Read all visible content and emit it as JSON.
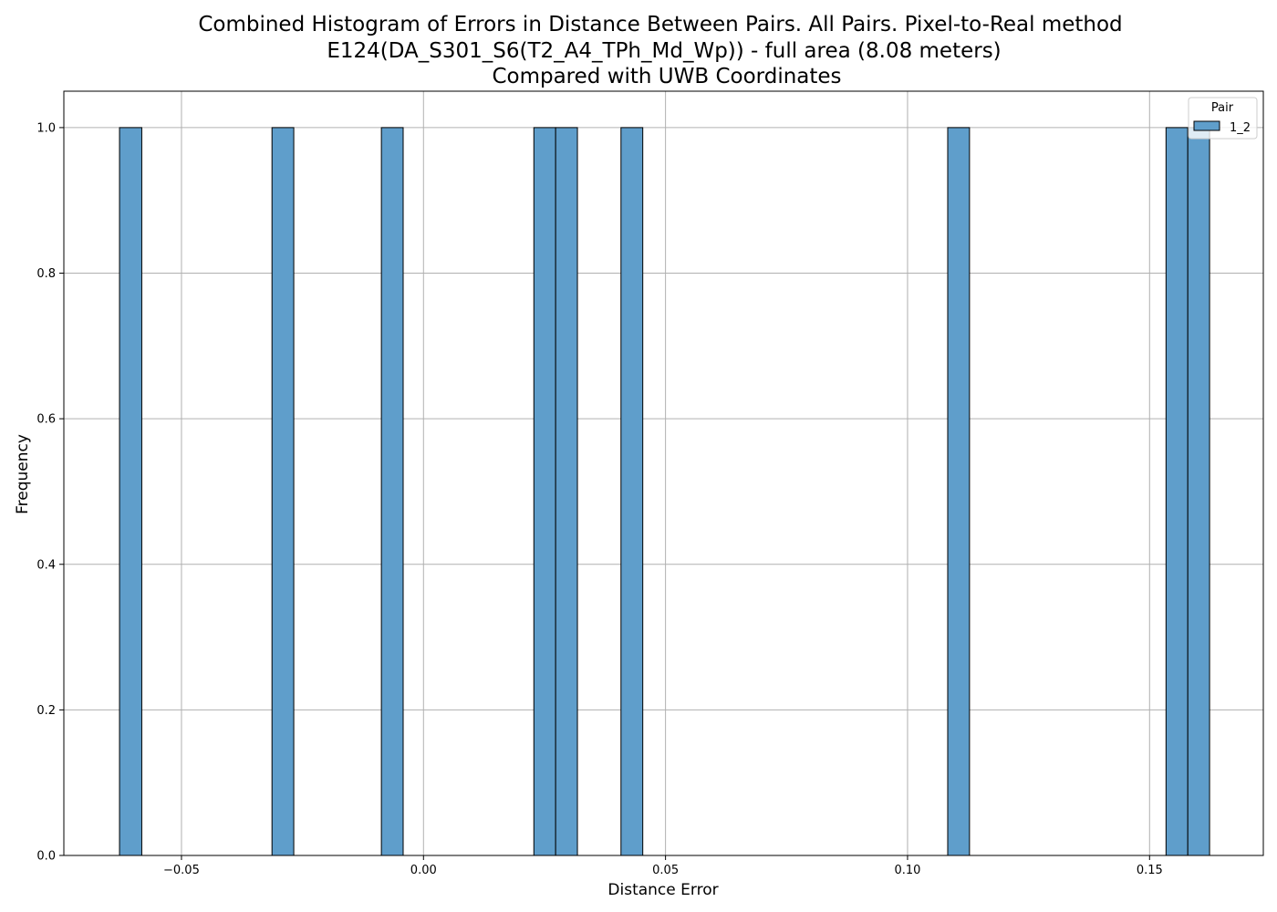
{
  "chart_data": {
    "type": "bar",
    "title_lines": [
      "Combined Histogram of Errors in Distance Between Pairs. All Pairs. Pixel-to-Real method",
      "E124(DA_S301_S6(T2_A4_TPh_Md_Wp)) - full area (8.08 meters)",
      "Compared with UWB Coordinates"
    ],
    "xlabel": "Distance Error",
    "ylabel": "Frequency",
    "xlim": [
      -0.0743,
      0.1735
    ],
    "ylim": [
      0,
      1.05
    ],
    "xticks": [
      -0.05,
      0.0,
      0.05,
      0.1,
      0.15
    ],
    "xtick_labels": [
      "−0.05",
      "0.00",
      "0.05",
      "0.10",
      "0.15"
    ],
    "yticks": [
      0.0,
      0.2,
      0.4,
      0.6,
      0.8,
      1.0
    ],
    "ytick_labels": [
      "0.0",
      "0.2",
      "0.4",
      "0.6",
      "0.8",
      "1.0"
    ],
    "grid": true,
    "legend": {
      "title": "Pair",
      "position": "top-right",
      "entries": [
        "1_2"
      ]
    },
    "series": [
      {
        "name": "1_2",
        "color": "#5f9ecb",
        "bins": [
          {
            "x0": -0.0628,
            "x1": -0.0582,
            "value": 1
          },
          {
            "x0": -0.0313,
            "x1": -0.0268,
            "value": 1
          },
          {
            "x0": -0.0087,
            "x1": -0.0042,
            "value": 1
          },
          {
            "x0": 0.0228,
            "x1": 0.0273,
            "value": 1
          },
          {
            "x0": 0.0273,
            "x1": 0.0318,
            "value": 1
          },
          {
            "x0": 0.0408,
            "x1": 0.0453,
            "value": 1
          },
          {
            "x0": 0.1083,
            "x1": 0.1128,
            "value": 1
          },
          {
            "x0": 0.1534,
            "x1": 0.1579,
            "value": 1
          },
          {
            "x0": 0.1579,
            "x1": 0.1624,
            "value": 1
          }
        ]
      }
    ]
  }
}
